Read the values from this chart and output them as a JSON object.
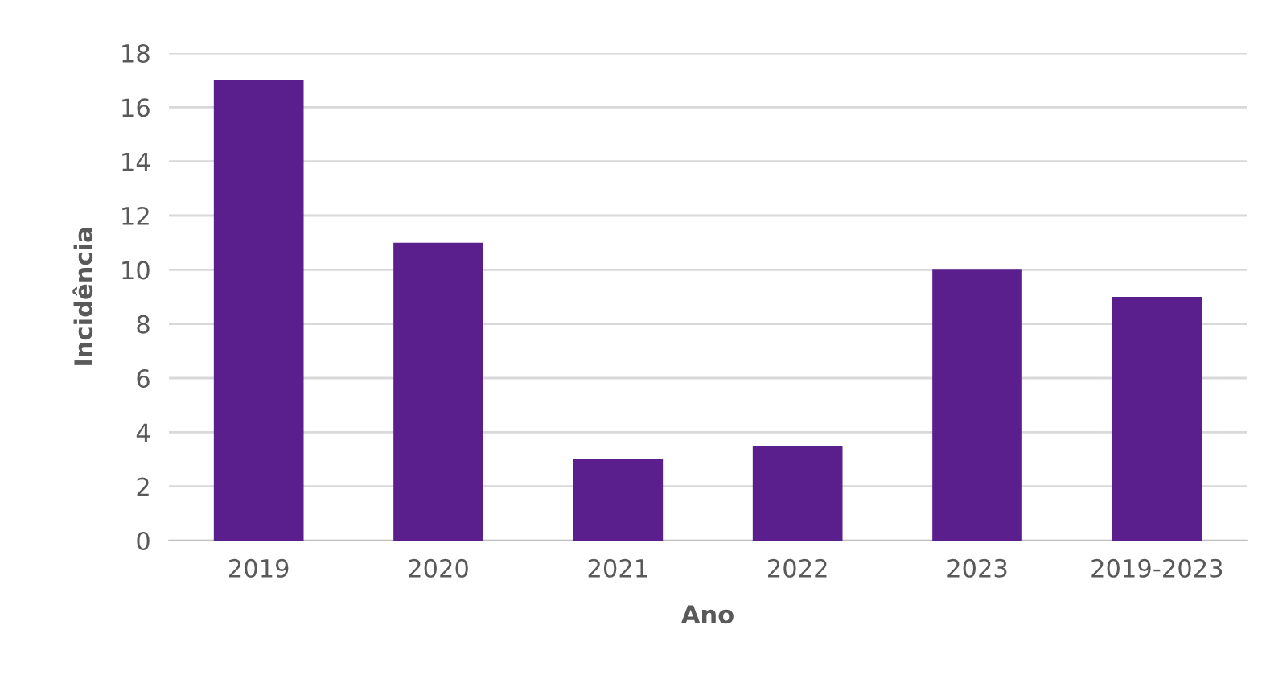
{
  "chart_data": {
    "type": "bar",
    "xlabel": "Ano",
    "ylabel": "Incidência",
    "categories": [
      "2019",
      "2020",
      "2021",
      "2022",
      "2023",
      "2019-2023"
    ],
    "values": [
      17,
      11,
      3,
      3.5,
      10,
      9
    ],
    "color": "#5a1f8c",
    "ylim": [
      0,
      18
    ],
    "yticks": [
      0,
      2,
      4,
      6,
      8,
      10,
      12,
      14,
      16,
      18
    ],
    "grid": "y"
  }
}
